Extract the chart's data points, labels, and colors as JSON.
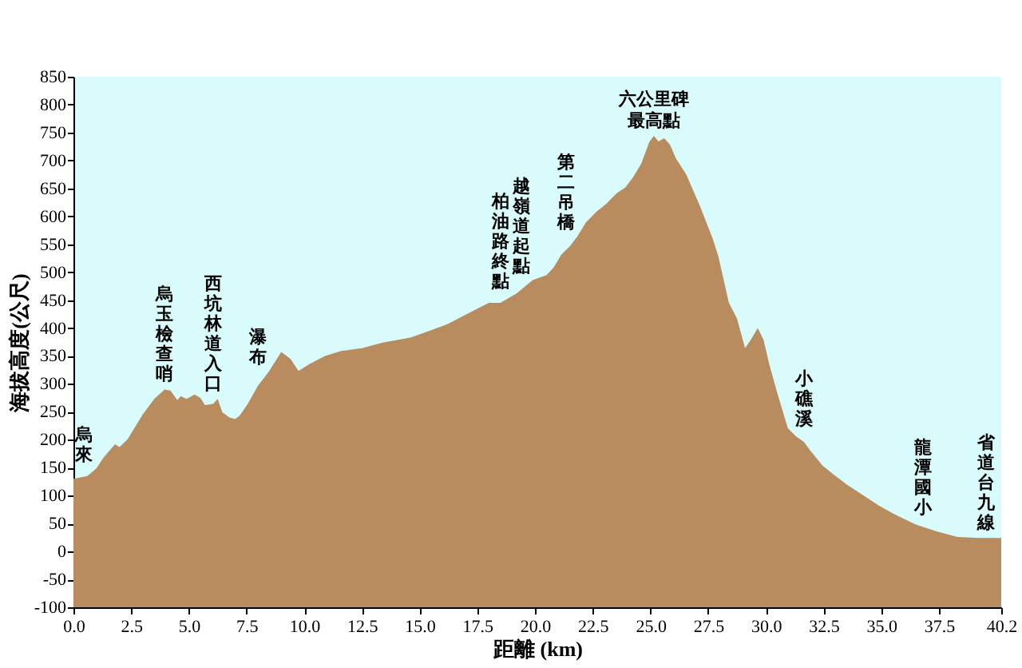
{
  "chart_data": {
    "type": "area",
    "xlabel": "距離 (km)",
    "ylabel": "海拔高度(公尺)",
    "x": [
      0,
      0.6,
      1.0,
      1.3,
      1.8,
      2.0,
      2.35,
      3.0,
      3.5,
      3.95,
      4.2,
      4.5,
      4.65,
      4.9,
      5.25,
      5.5,
      5.7,
      6.05,
      6.25,
      6.45,
      6.75,
      7.0,
      7.2,
      7.55,
      8.0,
      8.45,
      9.0,
      9.4,
      9.75,
      10.2,
      10.9,
      11.6,
      12.5,
      13.4,
      14.6,
      15.5,
      16.2,
      17.1,
      18.0,
      18.5,
      19.2,
      19.9,
      20.5,
      20.8,
      21.15,
      21.5,
      21.85,
      22.2,
      22.65,
      23.1,
      23.55,
      23.9,
      24.25,
      24.6,
      24.95,
      25.15,
      25.35,
      25.6,
      25.85,
      26.1,
      26.55,
      27.15,
      27.7,
      27.95,
      28.4,
      28.75,
      29.1,
      29.35,
      29.65,
      29.9,
      30.15,
      30.5,
      30.95,
      31.3,
      31.65,
      31.9,
      32.45,
      32.9,
      33.5,
      34.2,
      34.9,
      35.55,
      36.5,
      37.4,
      38.3,
      39.25,
      40.2
    ],
    "series": [
      {
        "color": "#b98c5f",
        "values": [
          130,
          135,
          149,
          168,
          192,
          187,
          201,
          245,
          273,
          290,
          288,
          271,
          278,
          273,
          281,
          275,
          262,
          264,
          273,
          249,
          240,
          237,
          243,
          264,
          297,
          321,
          357,
          345,
          323,
          335,
          350,
          359,
          364,
          374,
          383,
          396,
          407,
          426,
          445,
          445,
          462,
          486,
          495,
          508,
          532,
          546,
          565,
          589,
          608,
          623,
          642,
          651,
          670,
          694,
          733,
          744,
          734,
          740,
          728,
          704,
          675,
          618,
          560,
          527,
          445,
          417,
          364,
          379,
          400,
          379,
          335,
          283,
          221,
          206,
          196,
          182,
          154,
          139,
          120,
          101,
          82,
          67,
          48,
          36,
          26,
          24,
          24
        ]
      }
    ],
    "xlim": [
      0,
      40.2
    ],
    "ylim": [
      -100,
      850
    ],
    "xticks": [
      {
        "value": 0,
        "label": "0.0"
      },
      2.5,
      {
        "value": 5,
        "label": "5.0"
      },
      7.5,
      {
        "value": 10,
        "label": "10.0"
      },
      12.5,
      {
        "value": 15,
        "label": "15.0"
      },
      17.5,
      {
        "value": 20,
        "label": "20.0"
      },
      22.5,
      {
        "value": 25,
        "label": "25.0"
      },
      27.5,
      {
        "value": 30,
        "label": "30.0"
      },
      32.5,
      {
        "value": 35,
        "label": "35.0"
      },
      37.5,
      40.2
    ],
    "yticks": [
      -100,
      -50,
      0,
      50,
      100,
      150,
      200,
      250,
      300,
      350,
      400,
      450,
      500,
      550,
      600,
      650,
      700,
      750,
      800,
      850
    ],
    "bands": [
      {
        "axis": "y",
        "from": -100,
        "to": 0,
        "color": "#b98c5f"
      }
    ],
    "annotations": [
      {
        "text": "烏來",
        "x": 0.45,
        "y": 134
      },
      {
        "text": "烏玉檢查哨",
        "x": 3.95,
        "y": 290
      },
      {
        "text": "西坑林道入口",
        "x": 6.05,
        "y": 264
      },
      {
        "text": "瀑布",
        "x": 8.0,
        "y": 297
      },
      {
        "text": "柏油路終點",
        "x": 18.5,
        "y": 445
      },
      {
        "text": "越嶺道起點",
        "x": 19.4,
        "y": 469
      },
      {
        "text": "第二吊橋",
        "x": 21.35,
        "y": 540
      },
      {
        "text": "六公里碑",
        "x": 25.15,
        "y": 744
      },
      {
        "text": "最高點",
        "x": 25.15,
        "y": 744
      },
      {
        "text": "小礁溪",
        "x": 31.65,
        "y": 196
      },
      {
        "text": "龍潭國小",
        "x": 36.8,
        "y": 44
      },
      {
        "text": "省道台九線",
        "x": 39.55,
        "y": 24
      }
    ]
  }
}
